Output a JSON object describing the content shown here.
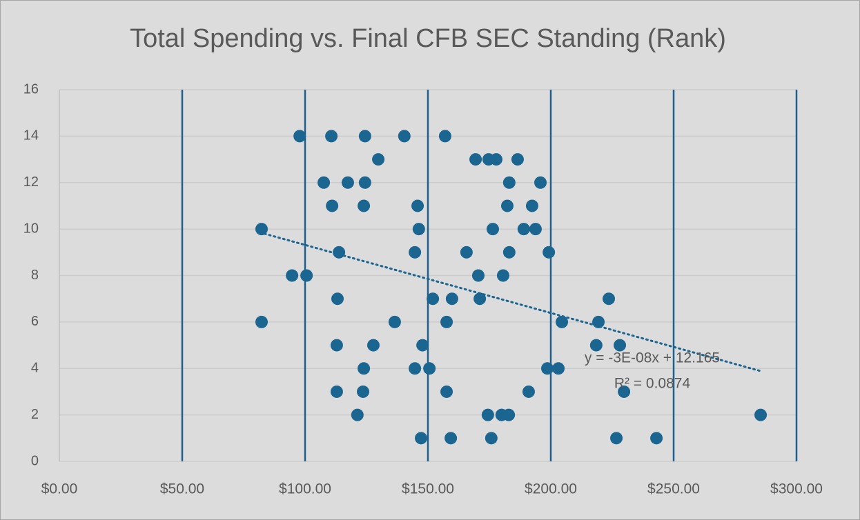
{
  "chart_data": {
    "type": "scatter",
    "title": "Total Spending vs. Final CFB SEC Standing (Rank)",
    "x": [
      82.3,
      82.3,
      94.7,
      100.6,
      97.8,
      110.7,
      107.6,
      117.4,
      111,
      113.8,
      113.2,
      112.9,
      112.9,
      121.3,
      123.6,
      123.9,
      127.8,
      124.4,
      124.4,
      123.9,
      129.8,
      140.4,
      136.5,
      144.7,
      145.8,
      146.3,
      144.7,
      147.8,
      150.6,
      147.2,
      152,
      157,
      157.6,
      157.6,
      159.8,
      159.3,
      165.7,
      169.4,
      174.7,
      177.8,
      170.5,
      171.1,
      176.4,
      174.4,
      175.8,
      180,
      182.9,
      186.5,
      183.1,
      182.3,
      183.1,
      180.6,
      189,
      193.8,
      192.4,
      195.8,
      199.2,
      198.6,
      203.1,
      204.5,
      191,
      219.4,
      218.5,
      223.6,
      228.1,
      229.8,
      226.7,
      243,
      285.4
    ],
    "values": [
      10,
      6,
      8,
      8,
      14,
      14,
      12,
      12,
      11,
      9,
      7,
      5,
      3,
      2,
      3,
      4,
      5,
      14,
      12,
      11,
      13,
      14,
      6,
      9,
      11,
      10,
      4,
      5,
      4,
      1,
      7,
      14,
      6,
      3,
      7,
      1,
      9,
      13,
      13,
      13,
      8,
      7,
      10,
      2,
      1,
      2,
      2,
      13,
      12,
      11,
      9,
      8,
      10,
      10,
      11,
      12,
      9,
      4,
      4,
      6,
      3,
      6,
      5,
      7,
      5,
      3,
      1,
      1,
      2
    ],
    "color": "#1b6591",
    "xlim": [
      0,
      300
    ],
    "ylim": [
      0,
      16
    ],
    "xticks": [
      {
        "value": 0,
        "label": "$0.00"
      },
      {
        "value": 50,
        "label": "$50.00"
      },
      {
        "value": 100,
        "label": "$100.00"
      },
      {
        "value": 150,
        "label": "$150.00"
      },
      {
        "value": 200,
        "label": "$200.00"
      },
      {
        "value": 250,
        "label": "$250.00"
      },
      {
        "value": 300,
        "label": "$300.00"
      }
    ],
    "yticks": [
      0,
      2,
      4,
      6,
      8,
      10,
      12,
      14,
      16
    ],
    "grid": true,
    "trendline": {
      "x": [
        83.5,
        285
      ],
      "values": [
        9.8,
        3.9
      ],
      "equation": "y = -3E-08x + 12.165",
      "r_squared": "R² = 0.0874"
    }
  }
}
